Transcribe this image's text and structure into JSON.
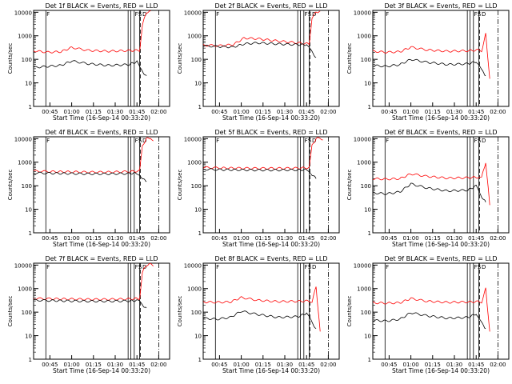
{
  "start_time_label": "Start Time (16-Sep-14 00:33:20)",
  "ylabel": "Counts/sec",
  "colors": {
    "events": "#000000",
    "lld": "#ff0000",
    "axes": "#000000"
  },
  "chart_data": [
    {
      "type": "line",
      "title": "Det 1f BLACK = Events, RED = LLD",
      "xticks": [
        "00:45",
        "01:00",
        "01:15",
        "01:30",
        "01:45",
        "02:00"
      ],
      "yticks": [
        "1",
        "10",
        "100",
        "1000",
        "10000"
      ],
      "ylim": [
        1,
        12000
      ],
      "yscale": "log",
      "series": [
        {
          "role": "lld",
          "x": [
            0.0,
            0.1,
            0.2,
            0.28,
            0.4,
            0.55,
            0.7,
            0.78,
            0.8,
            0.83,
            0.86
          ],
          "values": [
            230,
            200,
            210,
            320,
            240,
            220,
            235,
            240,
            3000,
            10000,
            11000
          ]
        },
        {
          "role": "events",
          "x": [
            0.0,
            0.1,
            0.2,
            0.28,
            0.4,
            0.55,
            0.7,
            0.76,
            0.78,
            0.8,
            0.83
          ],
          "values": [
            45,
            50,
            55,
            85,
            65,
            55,
            60,
            80,
            45,
            30,
            20
          ]
        }
      ],
      "vlines_solid": [
        0.09,
        0.695,
        0.715,
        0.74,
        0.78
      ],
      "vlines_dashed": [
        0.785
      ],
      "vlines_dashdot": [
        0.92
      ],
      "marker_labels": [
        "F",
        "",
        "",
        "F",
        "S",
        "D"
      ]
    },
    {
      "type": "line",
      "title": "Det 2f BLACK = Events, RED = LLD",
      "xticks": [
        "00:45",
        "01:00",
        "01:15",
        "01:30",
        "01:45",
        "02:00"
      ],
      "yticks": [
        "1",
        "10",
        "100",
        "1000",
        "10000"
      ],
      "ylim": [
        1,
        12000
      ],
      "yscale": "log",
      "series": [
        {
          "role": "lld",
          "x": [
            0.0,
            0.12,
            0.22,
            0.3,
            0.4,
            0.55,
            0.7,
            0.78,
            0.8,
            0.83,
            0.86
          ],
          "values": [
            400,
            380,
            420,
            800,
            750,
            600,
            500,
            450,
            6000,
            10000,
            11000
          ]
        },
        {
          "role": "events",
          "x": [
            0.0,
            0.12,
            0.22,
            0.3,
            0.4,
            0.55,
            0.7,
            0.76,
            0.78,
            0.8,
            0.83
          ],
          "values": [
            370,
            350,
            330,
            450,
            500,
            450,
            420,
            420,
            300,
            200,
            120
          ]
        }
      ],
      "vlines_solid": [
        0.09,
        0.695,
        0.715,
        0.74,
        0.78
      ],
      "vlines_dashed": [
        0.785
      ],
      "vlines_dashdot": [
        0.92
      ],
      "marker_labels": [
        "F",
        "",
        "",
        "F",
        "S",
        "D"
      ]
    },
    {
      "type": "line",
      "title": "Det 3f BLACK = Events, RED = LLD",
      "xticks": [
        "00:45",
        "01:00",
        "01:15",
        "01:30",
        "01:45",
        "02:00"
      ],
      "yticks": [
        "1",
        "10",
        "100",
        "1000",
        "10000"
      ],
      "ylim": [
        1,
        12000
      ],
      "yscale": "log",
      "series": [
        {
          "role": "lld",
          "x": [
            0.0,
            0.1,
            0.2,
            0.28,
            0.4,
            0.55,
            0.7,
            0.78,
            0.8,
            0.83,
            0.86
          ],
          "values": [
            220,
            200,
            210,
            330,
            250,
            220,
            230,
            250,
            220,
            1200,
            15
          ]
        },
        {
          "role": "events",
          "x": [
            0.0,
            0.1,
            0.2,
            0.28,
            0.4,
            0.55,
            0.7,
            0.76,
            0.78,
            0.8,
            0.83
          ],
          "values": [
            55,
            50,
            60,
            100,
            75,
            60,
            65,
            80,
            60,
            35,
            20
          ]
        }
      ],
      "vlines_solid": [
        0.09,
        0.695,
        0.715,
        0.74,
        0.78
      ],
      "vlines_dashed": [
        0.785
      ],
      "vlines_dashdot": [
        0.92
      ],
      "marker_labels": [
        "F",
        "",
        "",
        "F",
        "S",
        "D"
      ]
    },
    {
      "type": "line",
      "title": "Det 4f BLACK = Events, RED = LLD",
      "xticks": [
        "00:45",
        "01:00",
        "01:15",
        "01:30",
        "01:45",
        "02:00"
      ],
      "yticks": [
        "1",
        "10",
        "100",
        "1000",
        "10000"
      ],
      "ylim": [
        1,
        12000
      ],
      "yscale": "log",
      "series": [
        {
          "role": "lld",
          "x": [
            0.0,
            0.12,
            0.25,
            0.4,
            0.55,
            0.7,
            0.78,
            0.8,
            0.83,
            0.86,
            0.88
          ],
          "values": [
            420,
            400,
            390,
            380,
            380,
            400,
            420,
            5000,
            10000,
            11000,
            8000
          ]
        },
        {
          "role": "events",
          "x": [
            0.0,
            0.12,
            0.25,
            0.4,
            0.55,
            0.7,
            0.76,
            0.78,
            0.8,
            0.83
          ],
          "values": [
            350,
            340,
            330,
            320,
            320,
            330,
            340,
            300,
            200,
            150
          ]
        }
      ],
      "vlines_solid": [
        0.09,
        0.695,
        0.715,
        0.74,
        0.78
      ],
      "vlines_dashed": [
        0.785
      ],
      "vlines_dashdot": [
        0.92
      ],
      "marker_labels": [
        "F",
        "",
        "",
        "F",
        "S",
        "D"
      ]
    },
    {
      "type": "line",
      "title": "Det 5f BLACK = Events, RED = LLD",
      "xticks": [
        "00:45",
        "01:00",
        "01:15",
        "01:30",
        "01:45",
        "02:00"
      ],
      "yticks": [
        "1",
        "10",
        "100",
        "1000",
        "10000"
      ],
      "ylim": [
        1,
        12000
      ],
      "yscale": "log",
      "series": [
        {
          "role": "lld",
          "x": [
            0.0,
            0.12,
            0.25,
            0.4,
            0.55,
            0.7,
            0.78,
            0.8,
            0.83,
            0.86,
            0.88
          ],
          "values": [
            600,
            570,
            560,
            550,
            550,
            560,
            580,
            5000,
            10000,
            11000,
            9000
          ]
        },
        {
          "role": "events",
          "x": [
            0.0,
            0.12,
            0.25,
            0.4,
            0.55,
            0.7,
            0.76,
            0.78,
            0.8,
            0.83
          ],
          "values": [
            500,
            480,
            470,
            460,
            460,
            470,
            480,
            420,
            300,
            200
          ]
        }
      ],
      "vlines_solid": [
        0.09,
        0.695,
        0.715,
        0.74,
        0.78
      ],
      "vlines_dashed": [
        0.785
      ],
      "vlines_dashdot": [
        0.92
      ],
      "marker_labels": [
        "F",
        "",
        "",
        "F",
        "S",
        "D"
      ]
    },
    {
      "type": "line",
      "title": "Det 6f BLACK = Events, RED = LLD",
      "xticks": [
        "00:45",
        "01:00",
        "01:15",
        "01:30",
        "01:45",
        "02:00"
      ],
      "yticks": [
        "1",
        "10",
        "100",
        "1000",
        "10000"
      ],
      "ylim": [
        1,
        12000
      ],
      "yscale": "log",
      "series": [
        {
          "role": "lld",
          "x": [
            0.0,
            0.1,
            0.2,
            0.28,
            0.4,
            0.55,
            0.7,
            0.78,
            0.8,
            0.83,
            0.86
          ],
          "values": [
            200,
            190,
            200,
            320,
            250,
            210,
            220,
            230,
            220,
            1000,
            15
          ]
        },
        {
          "role": "events",
          "x": [
            0.0,
            0.1,
            0.2,
            0.28,
            0.4,
            0.55,
            0.7,
            0.76,
            0.78,
            0.8,
            0.83
          ],
          "values": [
            50,
            45,
            55,
            120,
            80,
            60,
            65,
            100,
            60,
            35,
            20
          ]
        }
      ],
      "vlines_solid": [
        0.09,
        0.695,
        0.715,
        0.74,
        0.78
      ],
      "vlines_dashed": [
        0.785
      ],
      "vlines_dashdot": [
        0.92
      ],
      "marker_labels": [
        "F",
        "",
        "",
        "F",
        "S",
        "D"
      ]
    },
    {
      "type": "line",
      "title": "Det 7f BLACK = Events, RED = LLD",
      "xticks": [
        "00:45",
        "01:00",
        "01:15",
        "01:30",
        "01:45",
        "02:00"
      ],
      "yticks": [
        "1",
        "10",
        "100",
        "1000",
        "10000"
      ],
      "ylim": [
        1,
        12000
      ],
      "yscale": "log",
      "series": [
        {
          "role": "lld",
          "x": [
            0.0,
            0.12,
            0.25,
            0.4,
            0.55,
            0.7,
            0.78,
            0.8,
            0.83,
            0.86,
            0.88
          ],
          "values": [
            380,
            370,
            360,
            350,
            350,
            360,
            380,
            5000,
            10000,
            11000,
            9000
          ]
        },
        {
          "role": "events",
          "x": [
            0.0,
            0.12,
            0.25,
            0.4,
            0.55,
            0.7,
            0.76,
            0.78,
            0.8,
            0.83
          ],
          "values": [
            320,
            310,
            300,
            290,
            290,
            300,
            310,
            280,
            200,
            150
          ]
        }
      ],
      "vlines_solid": [
        0.09,
        0.695,
        0.715,
        0.74,
        0.78
      ],
      "vlines_dashed": [
        0.785
      ],
      "vlines_dashdot": [
        0.92
      ],
      "marker_labels": [
        "F",
        "",
        "",
        "F",
        "S",
        "D"
      ]
    },
    {
      "type": "line",
      "title": "Det 8f BLACK = Events, RED = LLD",
      "xticks": [
        "00:45",
        "01:00",
        "01:15",
        "01:30",
        "01:45",
        "02:00"
      ],
      "yticks": [
        "1",
        "10",
        "100",
        "1000",
        "10000"
      ],
      "ylim": [
        1,
        12000
      ],
      "yscale": "log",
      "series": [
        {
          "role": "lld",
          "x": [
            0.0,
            0.1,
            0.2,
            0.28,
            0.4,
            0.55,
            0.7,
            0.78,
            0.8,
            0.83,
            0.86
          ],
          "values": [
            270,
            260,
            270,
            420,
            320,
            280,
            290,
            300,
            280,
            1200,
            15
          ]
        },
        {
          "role": "events",
          "x": [
            0.0,
            0.1,
            0.2,
            0.28,
            0.4,
            0.55,
            0.7,
            0.76,
            0.78,
            0.8,
            0.83
          ],
          "values": [
            55,
            50,
            60,
            110,
            80,
            60,
            65,
            90,
            60,
            35,
            20
          ]
        }
      ],
      "vlines_solid": [
        0.09,
        0.695,
        0.715,
        0.74,
        0.78
      ],
      "vlines_dashed": [
        0.785
      ],
      "vlines_dashdot": [
        0.92
      ],
      "marker_labels": [
        "F",
        "",
        "",
        "F",
        "S",
        "D"
      ]
    },
    {
      "type": "line",
      "title": "Det 9f BLACK = Events, RED = LLD",
      "xticks": [
        "00:45",
        "01:00",
        "01:15",
        "01:30",
        "01:45",
        "02:00"
      ],
      "yticks": [
        "1",
        "10",
        "100",
        "1000",
        "10000"
      ],
      "ylim": [
        1,
        12000
      ],
      "yscale": "log",
      "series": [
        {
          "role": "lld",
          "x": [
            0.0,
            0.1,
            0.2,
            0.28,
            0.4,
            0.55,
            0.7,
            0.78,
            0.8,
            0.83,
            0.86
          ],
          "values": [
            250,
            240,
            250,
            380,
            290,
            260,
            270,
            280,
            260,
            1000,
            15
          ]
        },
        {
          "role": "events",
          "x": [
            0.0,
            0.1,
            0.2,
            0.28,
            0.4,
            0.55,
            0.7,
            0.76,
            0.78,
            0.8,
            0.83
          ],
          "values": [
            45,
            42,
            50,
            95,
            70,
            55,
            60,
            85,
            55,
            35,
            20
          ]
        }
      ],
      "vlines_solid": [
        0.09,
        0.695,
        0.715,
        0.74,
        0.78
      ],
      "vlines_dashed": [
        0.785
      ],
      "vlines_dashdot": [
        0.92
      ],
      "marker_labels": [
        "F",
        "",
        "",
        "F",
        "S",
        "D"
      ]
    }
  ]
}
